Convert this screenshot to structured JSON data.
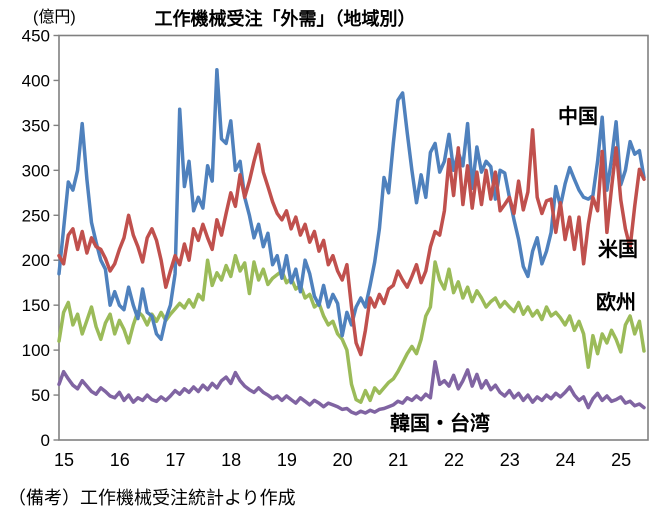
{
  "header": {
    "title": "工作機械受注「外需」（地域別）",
    "unit_label": "(億円)"
  },
  "footer": {
    "note": "（備考）工作機械受注統計より作成"
  },
  "chart_data": {
    "type": "line",
    "title": "工作機械受注「外需」（地域別）",
    "ylabel": "(億円)",
    "xlabel": "",
    "ylim": [
      0,
      450
    ],
    "ytick_step": 50,
    "yticks": [
      0,
      50,
      100,
      150,
      200,
      250,
      300,
      350,
      400,
      450
    ],
    "x_tick_labels": [
      "15",
      "16",
      "17",
      "18",
      "19",
      "20",
      "21",
      "22",
      "23",
      "24",
      "25"
    ],
    "x_frequency": "monthly",
    "x_start": "2015-01",
    "x_end": "2025-07",
    "grid": false,
    "legend_position": "inline-labels",
    "axis_color": "#808080",
    "series": [
      {
        "name": "中国",
        "color": "#4F81BD",
        "values": [
          185,
          235,
          287,
          278,
          300,
          352,
          290,
          242,
          220,
          200,
          190,
          150,
          165,
          150,
          145,
          170,
          150,
          135,
          168,
          142,
          138,
          118,
          112,
          135,
          150,
          185,
          368,
          282,
          310,
          255,
          270,
          258,
          305,
          288,
          412,
          335,
          330,
          355,
          300,
          310,
          270,
          250,
          225,
          240,
          215,
          230,
          195,
          205,
          180,
          205,
          175,
          190,
          165,
          200,
          185,
          160,
          150,
          172,
          148,
          162,
          152,
          116,
          142,
          128,
          148,
          158,
          148,
          172,
          198,
          235,
          292,
          275,
          330,
          378,
          386,
          342,
          300,
          264,
          295,
          270,
          320,
          330,
          298,
          310,
          340,
          300,
          320,
          305,
          352,
          280,
          326,
          298,
          310,
          304,
          268,
          300,
          297,
          270,
          245,
          223,
          193,
          182,
          210,
          225,
          196,
          210,
          231,
          282,
          260,
          285,
          303,
          290,
          278,
          270,
          268,
          272,
          310,
          359,
          278,
          312,
          354,
          284,
          300,
          332,
          318,
          322,
          292
        ]
      },
      {
        "name": "米国",
        "color": "#C0504D",
        "values": [
          205,
          196,
          228,
          235,
          212,
          232,
          208,
          225,
          215,
          212,
          202,
          188,
          196,
          212,
          225,
          250,
          228,
          215,
          198,
          225,
          235,
          222,
          200,
          170,
          188,
          205,
          195,
          218,
          200,
          235,
          222,
          240,
          225,
          212,
          245,
          228,
          252,
          275,
          260,
          295,
          270,
          288,
          310,
          329,
          298,
          282,
          265,
          252,
          245,
          255,
          235,
          248,
          228,
          240,
          220,
          232,
          210,
          222,
          195,
          205,
          188,
          178,
          195,
          148,
          108,
          95,
          122,
          158,
          148,
          162,
          152,
          168,
          172,
          188,
          178,
          170,
          182,
          195,
          175,
          188,
          215,
          232,
          228,
          255,
          312,
          272,
          325,
          262,
          305,
          258,
          298,
          262,
          300,
          268,
          298,
          255,
          262,
          270,
          252,
          288,
          256,
          276,
          345,
          270,
          252,
          266,
          268,
          231,
          264,
          223,
          248,
          212,
          248,
          196,
          240,
          270,
          255,
          321,
          231,
          280,
          325,
          267,
          235,
          214,
          260,
          301,
          290
        ]
      },
      {
        "name": "欧州",
        "color": "#9BBB59",
        "values": [
          110,
          142,
          153,
          128,
          140,
          118,
          133,
          148,
          126,
          112,
          130,
          140,
          118,
          133,
          123,
          108,
          128,
          143,
          138,
          128,
          140,
          132,
          142,
          133,
          140,
          146,
          152,
          147,
          156,
          148,
          162,
          156,
          200,
          172,
          186,
          178,
          194,
          182,
          205,
          188,
          197,
          163,
          198,
          178,
          190,
          173,
          180,
          184,
          188,
          175,
          180,
          168,
          172,
          158,
          162,
          148,
          152,
          138,
          128,
          132,
          118,
          112,
          100,
          62,
          45,
          42,
          55,
          44,
          58,
          52,
          58,
          64,
          68,
          76,
          86,
          96,
          104,
          96,
          112,
          138,
          148,
          198,
          178,
          168,
          190,
          164,
          176,
          158,
          170,
          154,
          166,
          158,
          148,
          154,
          158,
          148,
          154,
          148,
          143,
          153,
          140,
          148,
          138,
          144,
          134,
          148,
          138,
          142,
          136,
          128,
          138,
          122,
          132,
          118,
          81,
          116,
          96,
          118,
          108,
          122,
          112,
          98,
          128,
          138,
          118,
          132,
          99
        ]
      },
      {
        "name": "韓国・台湾",
        "color": "#8064A2",
        "values": [
          62,
          76,
          68,
          61,
          57,
          66,
          60,
          54,
          51,
          58,
          54,
          49,
          47,
          53,
          44,
          50,
          42,
          47,
          44,
          50,
          45,
          43,
          48,
          44,
          49,
          55,
          51,
          57,
          53,
          59,
          54,
          61,
          56,
          63,
          58,
          66,
          70,
          63,
          75,
          66,
          60,
          56,
          53,
          58,
          53,
          50,
          46,
          49,
          44,
          49,
          45,
          41,
          47,
          43,
          39,
          44,
          41,
          37,
          41,
          39,
          37,
          34,
          35,
          31,
          29,
          32,
          30,
          33,
          31,
          34,
          35,
          37,
          39,
          43,
          41,
          47,
          44,
          49,
          45,
          51,
          47,
          87,
          62,
          66,
          60,
          72,
          57,
          66,
          78,
          60,
          73,
          58,
          66,
          56,
          61,
          53,
          49,
          55,
          47,
          52,
          44,
          50,
          42,
          48,
          44,
          50,
          46,
          52,
          48,
          53,
          59,
          50,
          44,
          48,
          36,
          46,
          52,
          44,
          49,
          43,
          45,
          48,
          41,
          43,
          38,
          40,
          36
        ]
      }
    ]
  }
}
